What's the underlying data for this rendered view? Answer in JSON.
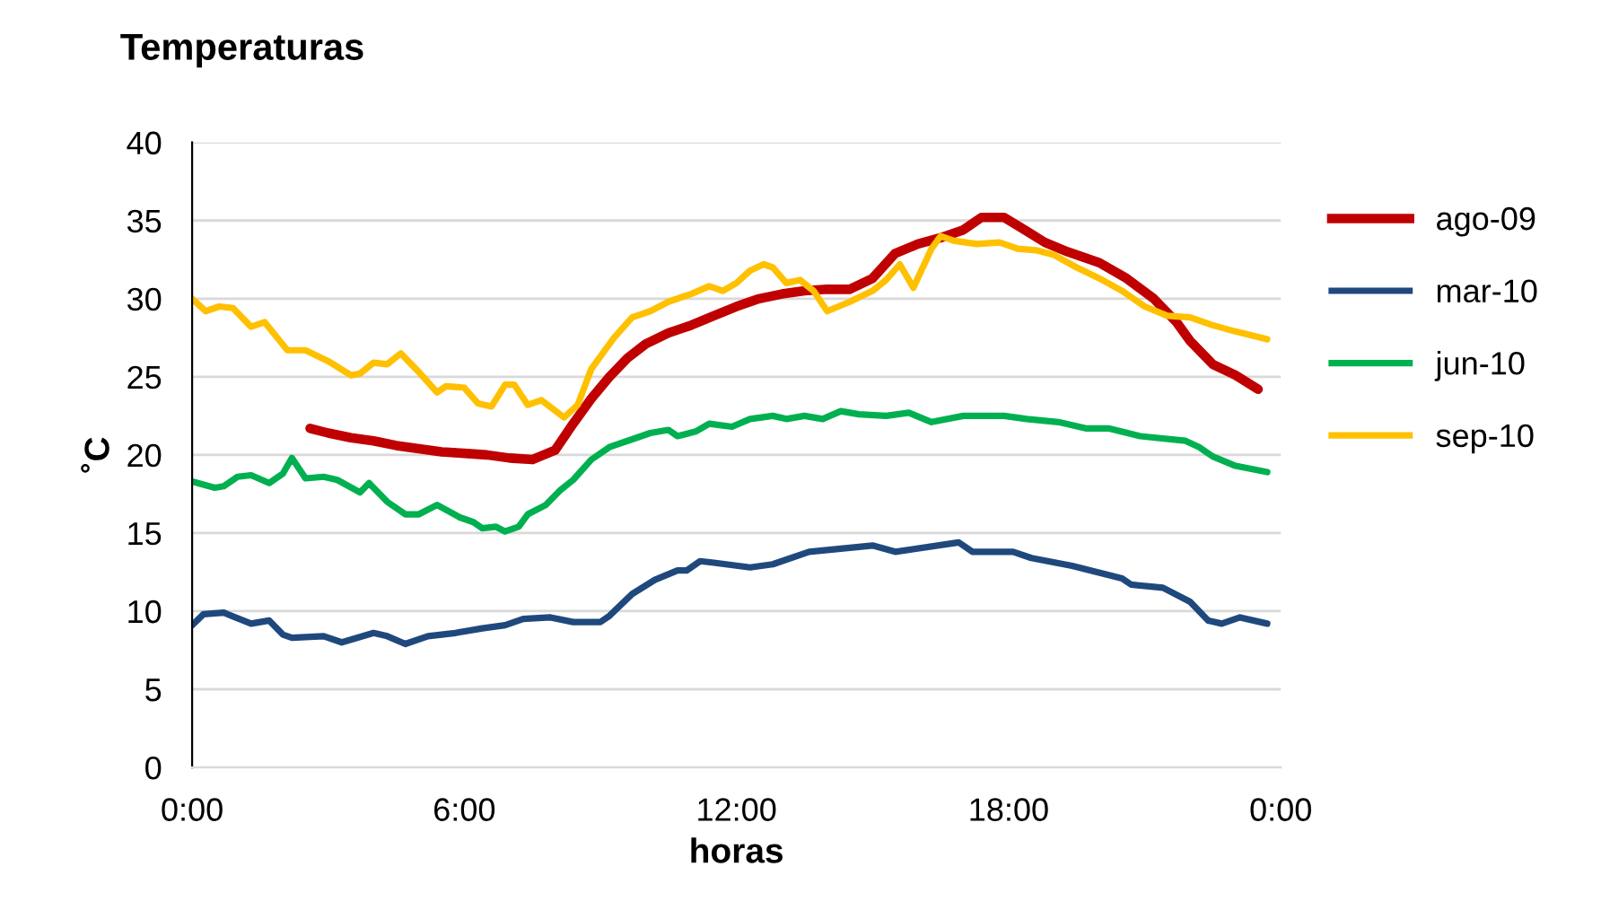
{
  "chart_data": {
    "type": "line",
    "title": "Temperaturas",
    "xlabel": "horas",
    "ylabel": "˚C",
    "xlim": [
      0,
      24
    ],
    "xticks": [
      {
        "value": 0,
        "label": "0:00"
      },
      {
        "value": 6,
        "label": "6:00"
      },
      {
        "value": 12,
        "label": "12:00"
      },
      {
        "value": 18,
        "label": "18:00"
      },
      {
        "value": 24,
        "label": "0:00"
      }
    ],
    "ylim": [
      0,
      40
    ],
    "yticks": [
      0,
      5,
      10,
      15,
      20,
      25,
      30,
      35,
      40
    ],
    "grid": "y",
    "legend": "right",
    "marker": "none",
    "line_style": "solid",
    "series": [
      {
        "name": "ago-09",
        "color": "#c00000",
        "x": [
          2.6,
          3.0,
          3.5,
          4.0,
          4.5,
          5.0,
          5.5,
          6.0,
          6.5,
          7.0,
          7.5,
          8.0,
          8.4,
          8.8,
          9.2,
          9.6,
          10.0,
          10.5,
          11.0,
          11.5,
          12.0,
          12.5,
          13.0,
          13.5,
          14.0,
          14.5,
          15.0,
          15.5,
          16.0,
          16.5,
          17.0,
          17.4,
          17.9,
          18.3,
          18.8,
          19.3,
          20.0,
          20.6,
          21.2,
          21.7,
          22.0,
          22.5,
          23.0,
          23.5
        ],
        "values": [
          21.7,
          21.4,
          21.1,
          20.9,
          20.6,
          20.4,
          20.2,
          20.1,
          20.0,
          19.8,
          19.7,
          20.3,
          22.0,
          23.6,
          25.0,
          26.2,
          27.1,
          27.8,
          28.3,
          28.9,
          29.5,
          30.0,
          30.3,
          30.5,
          30.6,
          30.6,
          31.3,
          32.9,
          33.5,
          33.9,
          34.4,
          35.2,
          35.2,
          34.5,
          33.6,
          33.0,
          32.3,
          31.3,
          30.0,
          28.5,
          27.3,
          25.8,
          25.1,
          24.2
        ]
      },
      {
        "name": "mar-10",
        "color": "#1f497d",
        "x": [
          0,
          0.25,
          0.7,
          1.3,
          1.7,
          2.0,
          2.2,
          2.9,
          3.3,
          4.0,
          4.3,
          4.7,
          5.2,
          5.8,
          6.4,
          6.9,
          7.3,
          7.9,
          8.4,
          9.0,
          9.2,
          9.7,
          10.2,
          10.7,
          10.9,
          11.2,
          11.5,
          12.3,
          12.8,
          13.6,
          15.0,
          15.5,
          16.9,
          17.2,
          18.1,
          18.5,
          19.4,
          20.5,
          20.7,
          21.4,
          22.0,
          22.4,
          22.7,
          23.1,
          23.7
        ],
        "values": [
          9.1,
          9.8,
          9.9,
          9.2,
          9.4,
          8.5,
          8.3,
          8.4,
          8.0,
          8.6,
          8.4,
          7.9,
          8.4,
          8.6,
          8.9,
          9.1,
          9.5,
          9.6,
          9.3,
          9.3,
          9.7,
          11.1,
          12.0,
          12.6,
          12.6,
          13.2,
          13.1,
          12.8,
          13.0,
          13.8,
          14.2,
          13.8,
          14.4,
          13.8,
          13.8,
          13.4,
          12.9,
          12.1,
          11.7,
          11.5,
          10.6,
          9.4,
          9.2,
          9.6,
          9.2
        ]
      },
      {
        "name": "jun-10",
        "color": "#00b050",
        "x": [
          0,
          0.5,
          0.7,
          1.0,
          1.3,
          1.7,
          2.0,
          2.2,
          2.5,
          2.9,
          3.2,
          3.7,
          3.9,
          4.3,
          4.7,
          5.0,
          5.4,
          5.9,
          6.2,
          6.4,
          6.7,
          6.9,
          7.2,
          7.4,
          7.8,
          8.1,
          8.4,
          8.8,
          9.2,
          9.7,
          10.1,
          10.5,
          10.7,
          11.1,
          11.4,
          11.9,
          12.3,
          12.8,
          13.1,
          13.5,
          13.9,
          14.3,
          14.7,
          15.3,
          15.8,
          16.3,
          17.0,
          17.9,
          18.4,
          19.1,
          19.7,
          20.2,
          20.9,
          21.9,
          22.2,
          22.5,
          23.0,
          23.7
        ],
        "values": [
          18.3,
          17.9,
          18.0,
          18.6,
          18.7,
          18.2,
          18.8,
          19.8,
          18.5,
          18.6,
          18.4,
          17.6,
          18.2,
          17.0,
          16.2,
          16.2,
          16.8,
          16.0,
          15.7,
          15.3,
          15.4,
          15.1,
          15.4,
          16.2,
          16.8,
          17.7,
          18.4,
          19.7,
          20.5,
          21.0,
          21.4,
          21.6,
          21.2,
          21.5,
          22.0,
          21.8,
          22.3,
          22.5,
          22.3,
          22.5,
          22.3,
          22.8,
          22.6,
          22.5,
          22.7,
          22.1,
          22.5,
          22.5,
          22.3,
          22.1,
          21.7,
          21.7,
          21.2,
          20.9,
          20.5,
          19.9,
          19.3,
          18.9
        ]
      },
      {
        "name": "sep-10",
        "color": "#ffc000",
        "x": [
          0,
          0.3,
          0.6,
          0.9,
          1.3,
          1.6,
          2.1,
          2.5,
          3.0,
          3.5,
          3.7,
          4.0,
          4.3,
          4.6,
          5.0,
          5.4,
          5.6,
          6.0,
          6.3,
          6.6,
          6.9,
          7.1,
          7.4,
          7.7,
          8.2,
          8.5,
          8.8,
          9.3,
          9.7,
          10.1,
          10.5,
          11.0,
          11.4,
          11.7,
          12.0,
          12.3,
          12.6,
          12.8,
          13.1,
          13.4,
          13.7,
          14.0,
          14.5,
          15.0,
          15.3,
          15.6,
          15.9,
          16.3,
          16.5,
          16.8,
          17.3,
          17.8,
          18.2,
          18.6,
          19.0,
          19.5,
          20.0,
          20.5,
          21.0,
          21.5,
          22.0,
          22.5,
          23.0,
          23.7
        ],
        "values": [
          30.0,
          29.2,
          29.5,
          29.4,
          28.2,
          28.5,
          26.7,
          26.7,
          26.0,
          25.1,
          25.2,
          25.9,
          25.8,
          26.5,
          25.3,
          24.0,
          24.4,
          24.3,
          23.3,
          23.1,
          24.5,
          24.5,
          23.2,
          23.5,
          22.4,
          23.2,
          25.5,
          27.5,
          28.8,
          29.2,
          29.8,
          30.3,
          30.8,
          30.5,
          31.0,
          31.8,
          32.2,
          32.0,
          31.0,
          31.2,
          30.5,
          29.2,
          29.8,
          30.5,
          31.2,
          32.2,
          30.7,
          33.2,
          34.0,
          33.7,
          33.5,
          33.6,
          33.2,
          33.1,
          32.8,
          32.0,
          31.3,
          30.5,
          29.5,
          28.9,
          28.8,
          28.3,
          27.9,
          27.4
        ]
      }
    ]
  }
}
